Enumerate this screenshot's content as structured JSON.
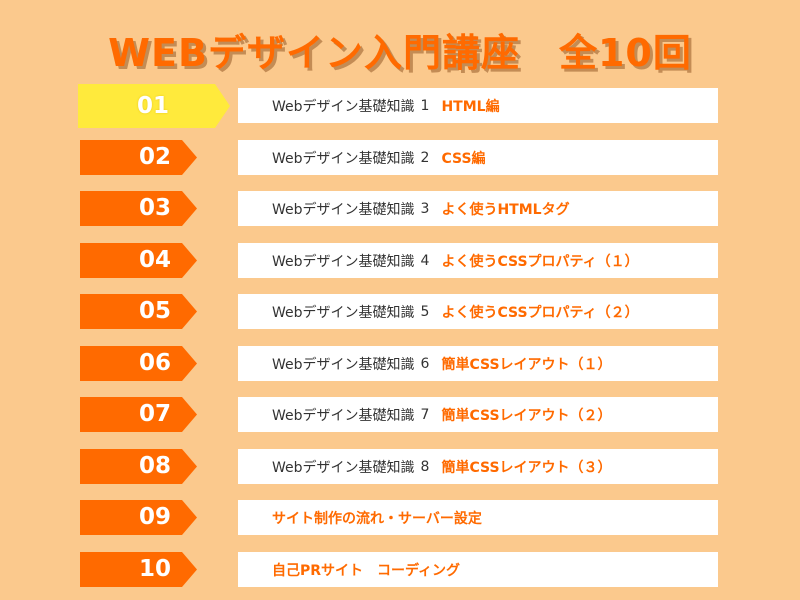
{
  "title": "WEBデザイン入門講座　全10回",
  "lessons": [
    {
      "num": "01",
      "series": "Webデザイン基礎知識",
      "series_num": "1",
      "topic": "HTML編",
      "current": true
    },
    {
      "num": "02",
      "series": "Webデザイン基礎知識",
      "series_num": "2",
      "topic": "CSS編"
    },
    {
      "num": "03",
      "series": "Webデザイン基礎知識",
      "series_num": "3",
      "topic": "よく使うHTMLタグ"
    },
    {
      "num": "04",
      "series": "Webデザイン基礎知識",
      "series_num": "4",
      "topic": "よく使うCSSプロパティ（１）"
    },
    {
      "num": "05",
      "series": "Webデザイン基礎知識",
      "series_num": "5",
      "topic": "よく使うCSSプロパティ（２）"
    },
    {
      "num": "06",
      "series": "Webデザイン基礎知識",
      "series_num": "6",
      "topic": "簡単CSSレイアウト（１）"
    },
    {
      "num": "07",
      "series": "Webデザイン基礎知識",
      "series_num": "7",
      "topic": "簡単CSSレイアウト（２）"
    },
    {
      "num": "08",
      "series": "Webデザイン基礎知識",
      "series_num": "8",
      "topic": "簡単CSSレイアウト（３）"
    },
    {
      "num": "09",
      "topic": "サイト制作の流れ・サーバー設定"
    },
    {
      "num": "10",
      "topic": "自己PRサイト　コーディング"
    }
  ],
  "colors": {
    "background": "#fbc98d",
    "accent": "#ff6a00",
    "current_badge": "#ffea3c",
    "box": "#ffffff",
    "text": "#333333"
  }
}
